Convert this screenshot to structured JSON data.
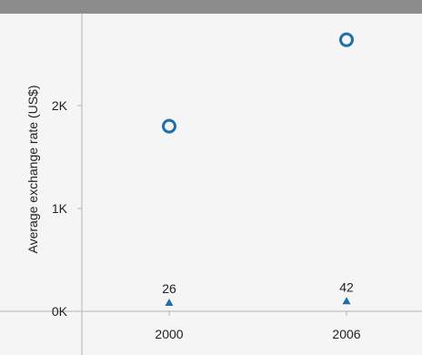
{
  "chart_data": {
    "type": "scatter",
    "x_tick_labels": [
      "2000",
      "2006"
    ],
    "y_tick_labels": [
      "0K",
      "1K",
      "2K"
    ],
    "ylabel": "Average exchange rate (US$)",
    "xlabel": "",
    "ylim": [
      0,
      2800
    ],
    "grid": false,
    "series": [
      {
        "marker": "circle-open",
        "color": "#1f6fa8",
        "points": [
          {
            "x": "2000",
            "y": 1800
          },
          {
            "x": "2006",
            "y": 2640
          }
        ]
      },
      {
        "marker": "triangle",
        "color": "#1f6fa8",
        "points": [
          {
            "x": "2000",
            "y": 26,
            "label": "26"
          },
          {
            "x": "2006",
            "y": 42,
            "label": "42"
          }
        ]
      }
    ]
  }
}
